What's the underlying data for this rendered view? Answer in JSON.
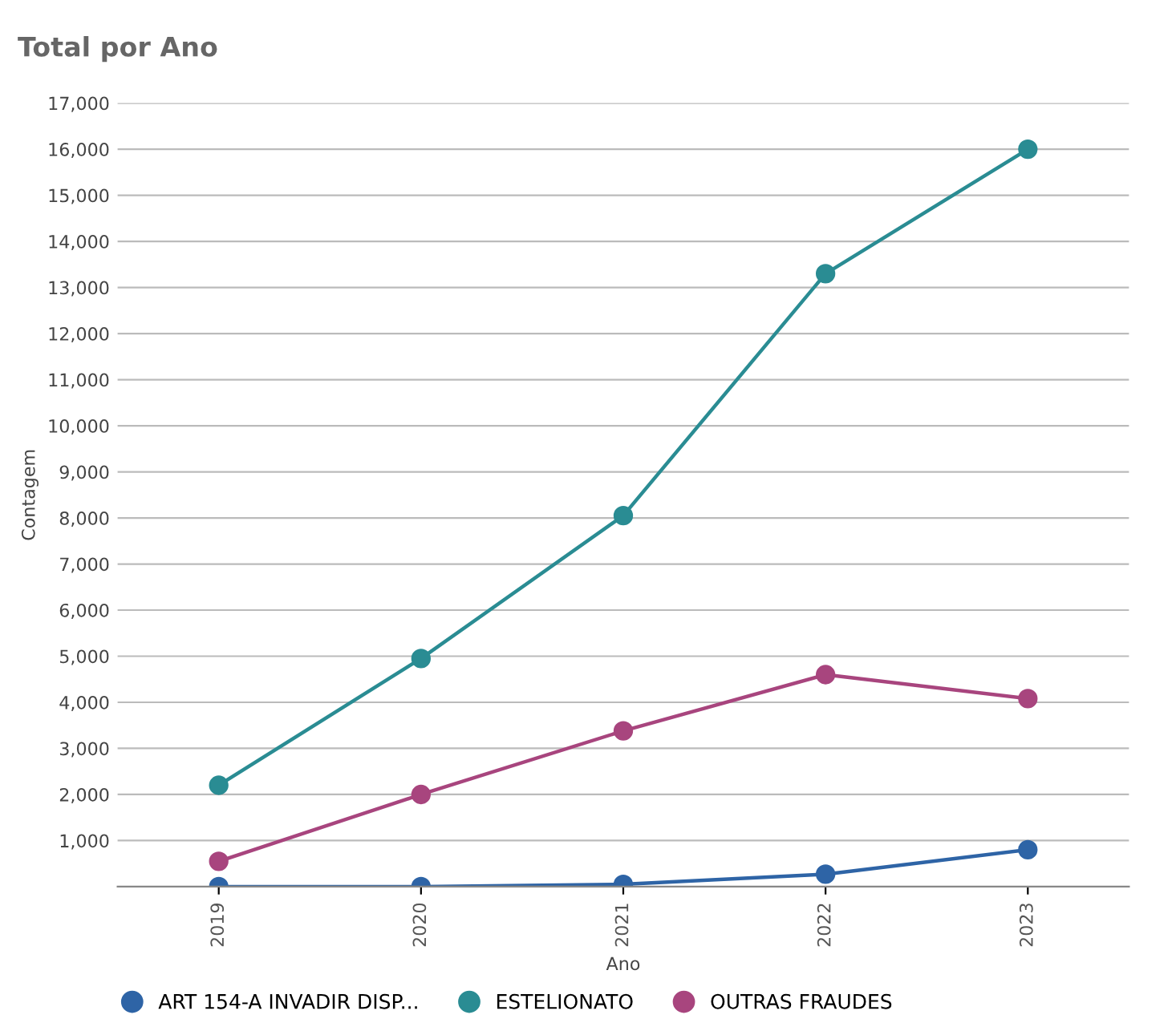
{
  "chart_data": {
    "type": "line",
    "title": "Total por Ano",
    "xlabel": "Ano",
    "ylabel": "Contagem",
    "categories": [
      "2019",
      "2020",
      "2021",
      "2022",
      "2023"
    ],
    "series": [
      {
        "name": "ART 154-A INVADIR DISP...",
        "color": "#2e64a6",
        "values": [
          0,
          0,
          50,
          270,
          800
        ]
      },
      {
        "name": "ESTELIONATO",
        "color": "#2a8c93",
        "values": [
          2200,
          4950,
          8050,
          13300,
          16000
        ]
      },
      {
        "name": "OUTRAS FRAUDES",
        "color": "#a8457e",
        "values": [
          550,
          2000,
          3380,
          4600,
          4080
        ]
      }
    ],
    "ylim": [
      0,
      17000
    ],
    "yticks": [
      {
        "value": 1000,
        "label": "1,000"
      },
      {
        "value": 2000,
        "label": "2,000"
      },
      {
        "value": 3000,
        "label": "3,000"
      },
      {
        "value": 4000,
        "label": "4,000"
      },
      {
        "value": 5000,
        "label": "5,000"
      },
      {
        "value": 6000,
        "label": "6,000"
      },
      {
        "value": 7000,
        "label": "7,000"
      },
      {
        "value": 8000,
        "label": "8,000"
      },
      {
        "value": 9000,
        "label": "9,000"
      },
      {
        "value": 10000,
        "label": "10,000"
      },
      {
        "value": 11000,
        "label": "11,000"
      },
      {
        "value": 12000,
        "label": "12,000"
      },
      {
        "value": 13000,
        "label": "13,000"
      },
      {
        "value": 14000,
        "label": "14,000"
      },
      {
        "value": 15000,
        "label": "15,000"
      },
      {
        "value": 16000,
        "label": "16,000"
      },
      {
        "value": 17000,
        "label": "17,000"
      }
    ],
    "grid": "y",
    "legend": "bottom left",
    "marker": "circle",
    "line_style": "solid"
  }
}
